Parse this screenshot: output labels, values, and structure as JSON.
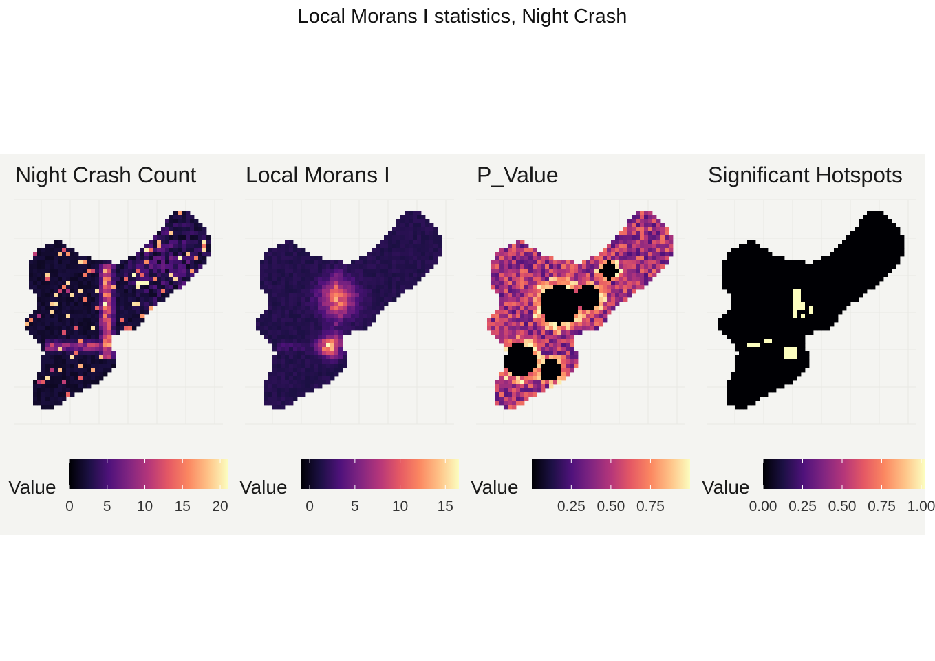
{
  "title": "Local Morans I statistics, Night Crash",
  "colors": {
    "panel_background": "#f4f4f1",
    "grid": "#e8e8e4",
    "palette": "magma",
    "magma_stops": [
      "#000004",
      "#1c1044",
      "#4f127b",
      "#812581",
      "#b5367a",
      "#e55964",
      "#fb8761",
      "#fec287",
      "#fcfdbf"
    ]
  },
  "chart_data": [
    {
      "type": "heatmap",
      "title": "Night Crash Count",
      "legend": {
        "label": "Value",
        "placement": "bottom"
      },
      "scale": {
        "min": 0,
        "max": 21,
        "ticks": [
          0,
          5,
          10,
          15,
          20
        ],
        "tick_labels": [
          "0",
          "5",
          "10",
          "15",
          "20"
        ]
      },
      "grid": true
    },
    {
      "type": "heatmap",
      "title": "Local Morans I",
      "legend": {
        "label": "Value",
        "placement": "bottom"
      },
      "scale": {
        "min": -1,
        "max": 16.5,
        "ticks": [
          0,
          5,
          10,
          15
        ],
        "tick_labels": [
          "0",
          "5",
          "10",
          "15"
        ]
      },
      "grid": true
    },
    {
      "type": "heatmap",
      "title": "P_Value",
      "legend": {
        "label": "Value",
        "placement": "bottom"
      },
      "scale": {
        "min": 0.001,
        "max": 1.0,
        "ticks": [
          0.25,
          0.5,
          0.75
        ],
        "tick_labels": [
          "0.25",
          "0.50",
          "0.75"
        ]
      },
      "grid": true
    },
    {
      "type": "heatmap",
      "title": "Significant Hotspots",
      "legend": {
        "label": "Value",
        "placement": "bottom"
      },
      "scale": {
        "min": 0,
        "max": 1,
        "ticks": [
          0,
          0.25,
          0.5,
          0.75,
          1.0
        ],
        "tick_labels": [
          "0.00",
          "0.25",
          "0.50",
          "0.75",
          "1.00"
        ]
      },
      "grid": true
    }
  ]
}
